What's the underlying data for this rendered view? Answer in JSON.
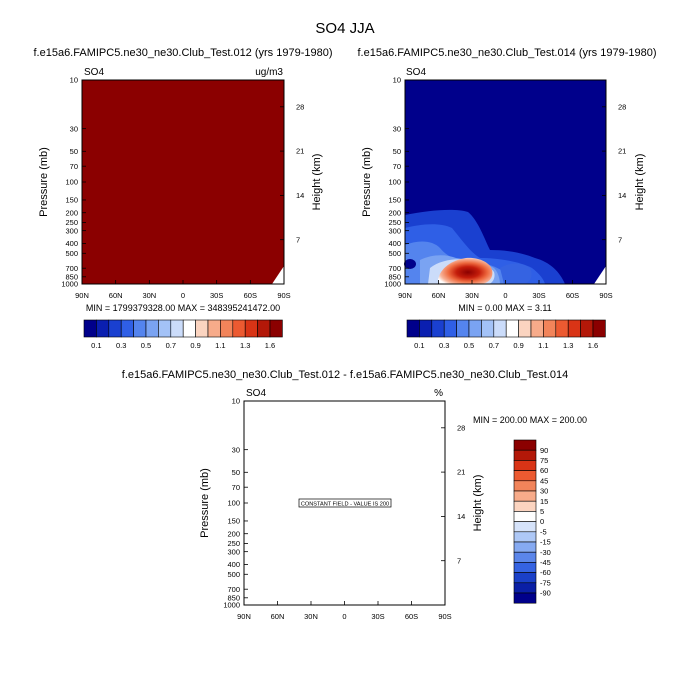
{
  "figure": {
    "title": "SO4 JJA"
  },
  "chart_data": [
    {
      "type": "heatmap",
      "title": "f.e15a6.FAMIPC5.ne30_ne30.Club_Test.012 (yrs 1979-1980)",
      "variable": "SO4",
      "units": "ug/m3",
      "xlabel": "",
      "ylabel": "Pressure (mb)",
      "y2label": "Height (km)",
      "xticks": [
        "90N",
        "60N",
        "30N",
        "0",
        "30S",
        "60S",
        "90S"
      ],
      "yticks": [
        "10",
        "30",
        "50",
        "70",
        "100",
        "150",
        "200",
        "250",
        "300",
        "400",
        "500",
        "700",
        "850",
        "1000"
      ],
      "y2ticks": [
        "28",
        "21",
        "14",
        "7"
      ],
      "stats": "MIN = 1799379328.00   MAX = 348395241472.00",
      "field_color": "#8b0000",
      "colorbar": {
        "orientation": "horizontal",
        "labels": [
          "0.1",
          "0.3",
          "0.5",
          "0.7",
          "0.9",
          "1.1",
          "1.3",
          "1.6"
        ]
      }
    },
    {
      "type": "heatmap",
      "title": "f.e15a6.FAMIPC5.ne30_ne30.Club_Test.014 (yrs 1979-1980)",
      "variable": "SO4",
      "units": "",
      "xlabel": "",
      "ylabel": "Pressure (mb)",
      "y2label": "Height (km)",
      "xticks": [
        "90N",
        "60N",
        "30N",
        "0",
        "30S",
        "60S",
        "90S"
      ],
      "yticks": [
        "10",
        "30",
        "50",
        "70",
        "100",
        "150",
        "200",
        "250",
        "300",
        "400",
        "500",
        "700",
        "850",
        "1000"
      ],
      "y2ticks": [
        "28",
        "21",
        "14",
        "7"
      ],
      "stats": "MIN =   0.00   MAX =   3.11",
      "field_color": "#00008b",
      "maximum_location": {
        "lat": 30,
        "pressure": 850,
        "value": 3.11
      },
      "colorbar": {
        "orientation": "horizontal",
        "labels": [
          "0.1",
          "0.3",
          "0.5",
          "0.7",
          "0.9",
          "1.1",
          "1.3",
          "1.6"
        ]
      }
    },
    {
      "type": "heatmap",
      "title": "f.e15a6.FAMIPC5.ne30_ne30.Club_Test.012 - f.e15a6.FAMIPC5.ne30_ne30.Club_Test.014",
      "variable": "SO4",
      "units": "%",
      "xlabel": "",
      "ylabel": "Pressure (mb)",
      "y2label": "Height (km)",
      "xticks": [
        "90N",
        "60N",
        "30N",
        "0",
        "30S",
        "60S",
        "90S"
      ],
      "yticks": [
        "10",
        "30",
        "50",
        "70",
        "100",
        "150",
        "200",
        "250",
        "300",
        "400",
        "500",
        "700",
        "850",
        "1000"
      ],
      "y2ticks": [
        "28",
        "21",
        "14",
        "7"
      ],
      "stats": "MIN = 200.00   MAX = 200.00",
      "annotation": "CONSTANT FIELD - VALUE IS 200",
      "colorbar": {
        "orientation": "vertical",
        "labels": [
          "90",
          "75",
          "60",
          "45",
          "30",
          "15",
          "5",
          "0",
          "-5",
          "-15",
          "-30",
          "-45",
          "-60",
          "-75",
          "-90"
        ]
      }
    }
  ],
  "colors": {
    "horizontal_colorbar": [
      "#00008b",
      "#0a1fb0",
      "#1a40d0",
      "#2f5fe6",
      "#5484ee",
      "#7aa3f2",
      "#a3c2f7",
      "#cbdcfa",
      "#ffffff",
      "#fbd4c0",
      "#f7ab8a",
      "#f2845a",
      "#ec5a31",
      "#d93416",
      "#b31808",
      "#8b0000"
    ],
    "vertical_colorbar": [
      "#8b0000",
      "#b31808",
      "#d93416",
      "#ec5a31",
      "#f2845a",
      "#f7ab8a",
      "#fbd4c0",
      "#ffffff",
      "#d6e3fa",
      "#aec8f6",
      "#86aaf1",
      "#5b86ea",
      "#3563e2",
      "#1a40c8",
      "#0a1fa6",
      "#00008b"
    ]
  }
}
